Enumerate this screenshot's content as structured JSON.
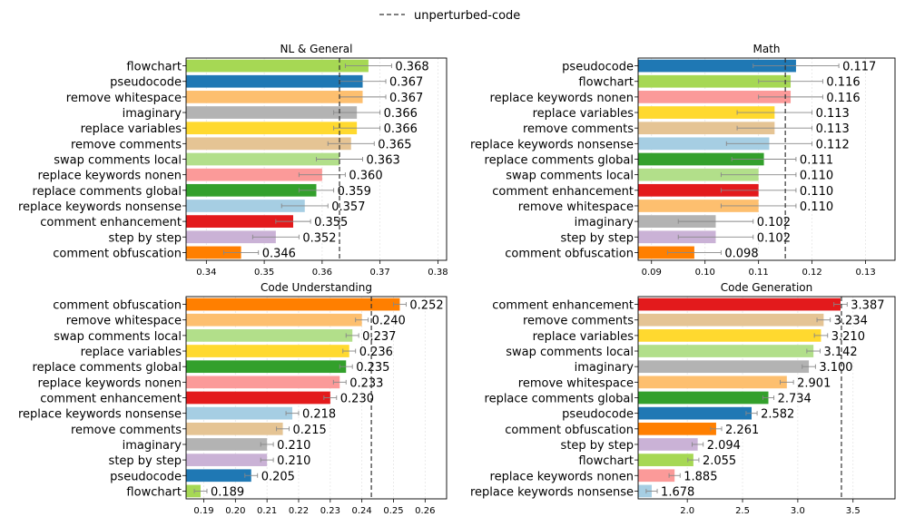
{
  "legend": {
    "label": "unperturbed-code",
    "placement": "top-center"
  },
  "chart_data": [
    {
      "type": "bar",
      "orientation": "horizontal",
      "title": "NL & General",
      "categories": [
        "flowchart",
        "pseudocode",
        "remove whitespace",
        "imaginary",
        "replace variables",
        "remove comments",
        "swap comments local",
        "replace keywords nonen",
        "replace comments global",
        "replace keywords nonsense",
        "comment enhancement",
        "step by step",
        "comment obfuscation"
      ],
      "values": [
        0.368,
        0.367,
        0.367,
        0.366,
        0.366,
        0.365,
        0.363,
        0.36,
        0.359,
        0.357,
        0.355,
        0.352,
        0.346
      ],
      "value_labels": [
        "0.368",
        "0.367",
        "0.367",
        "0.366",
        "0.366",
        "0.365",
        "0.363",
        "0.360",
        "0.359",
        "0.357",
        "0.355",
        "0.352",
        "0.346"
      ],
      "errors": [
        0.004,
        0.004,
        0.004,
        0.004,
        0.004,
        0.004,
        0.004,
        0.004,
        0.003,
        0.004,
        0.003,
        0.004,
        0.003
      ],
      "colors": [
        "#a6d854",
        "#1f78b4",
        "#fdbf6f",
        "#b3b3b3",
        "#ffd92f",
        "#e5c494",
        "#b2df8a",
        "#fb9a99",
        "#33a02c",
        "#a6cee3",
        "#e31a1c",
        "#cab2d6",
        "#ff7f00"
      ],
      "xlim": [
        0.3365,
        0.3815
      ],
      "xticks": [
        0.34,
        0.35,
        0.36,
        0.37,
        0.38
      ],
      "xtick_labels": [
        "0.34",
        "0.35",
        "0.36",
        "0.37",
        "0.38"
      ],
      "reference_line": 0.363,
      "grid": "vertical"
    },
    {
      "type": "bar",
      "orientation": "horizontal",
      "title": "Math",
      "categories": [
        "pseudocode",
        "flowchart",
        "replace keywords nonen",
        "replace variables",
        "remove comments",
        "replace keywords nonsense",
        "replace comments global",
        "swap comments local",
        "comment enhancement",
        "remove whitespace",
        "imaginary",
        "step by step",
        "comment obfuscation"
      ],
      "values": [
        0.117,
        0.116,
        0.116,
        0.113,
        0.113,
        0.112,
        0.111,
        0.11,
        0.11,
        0.11,
        0.102,
        0.102,
        0.098
      ],
      "value_labels": [
        "0.117",
        "0.116",
        "0.116",
        "0.113",
        "0.113",
        "0.112",
        "0.111",
        "0.110",
        "0.110",
        "0.110",
        "0.102",
        "0.102",
        "0.098"
      ],
      "errors": [
        0.008,
        0.006,
        0.006,
        0.007,
        0.007,
        0.008,
        0.006,
        0.007,
        0.007,
        0.007,
        0.007,
        0.007,
        0.005
      ],
      "colors": [
        "#1f78b4",
        "#a6d854",
        "#fb9a99",
        "#ffd92f",
        "#e5c494",
        "#a6cee3",
        "#33a02c",
        "#b2df8a",
        "#e31a1c",
        "#fdbf6f",
        "#b3b3b3",
        "#cab2d6",
        "#ff7f00"
      ],
      "xlim": [
        0.0875,
        0.1355
      ],
      "xticks": [
        0.09,
        0.1,
        0.11,
        0.12,
        0.13
      ],
      "xtick_labels": [
        "0.09",
        "0.10",
        "0.11",
        "0.12",
        "0.13"
      ],
      "reference_line": 0.115,
      "grid": "vertical"
    },
    {
      "type": "bar",
      "orientation": "horizontal",
      "title": "Code Understanding",
      "categories": [
        "comment obfuscation",
        "remove whitespace",
        "swap comments local",
        "replace variables",
        "replace comments global",
        "replace keywords nonen",
        "comment enhancement",
        "replace keywords nonsense",
        "remove comments",
        "imaginary",
        "step by step",
        "pseudocode",
        "flowchart"
      ],
      "values": [
        0.252,
        0.24,
        0.237,
        0.236,
        0.235,
        0.233,
        0.23,
        0.218,
        0.215,
        0.21,
        0.21,
        0.205,
        0.189
      ],
      "value_labels": [
        "0.252",
        "0.240",
        "0.237",
        "0.236",
        "0.235",
        "0.233",
        "0.230",
        "0.218",
        "0.215",
        "0.210",
        "0.210",
        "0.205",
        "0.189"
      ],
      "errors": [
        0.002,
        0.002,
        0.002,
        0.002,
        0.002,
        0.002,
        0.002,
        0.002,
        0.002,
        0.002,
        0.002,
        0.002,
        0.002
      ],
      "colors": [
        "#ff7f00",
        "#fdbf6f",
        "#b2df8a",
        "#ffd92f",
        "#33a02c",
        "#fb9a99",
        "#e31a1c",
        "#a6cee3",
        "#e5c494",
        "#b3b3b3",
        "#cab2d6",
        "#1f78b4",
        "#a6d854"
      ],
      "xlim": [
        0.1844,
        0.2668
      ],
      "xticks": [
        0.19,
        0.2,
        0.21,
        0.22,
        0.23,
        0.24,
        0.25,
        0.26
      ],
      "xtick_labels": [
        "0.19",
        "0.20",
        "0.21",
        "0.22",
        "0.23",
        "0.24",
        "0.25",
        "0.26"
      ],
      "reference_line": 0.243,
      "grid": "vertical"
    },
    {
      "type": "bar",
      "orientation": "horizontal",
      "title": "Code Generation",
      "categories": [
        "comment enhancement",
        "remove comments",
        "replace variables",
        "swap comments local",
        "imaginary",
        "remove whitespace",
        "replace comments global",
        "pseudocode",
        "comment obfuscation",
        "step by step",
        "flowchart",
        "replace keywords nonen",
        "replace keywords nonsense"
      ],
      "values": [
        3.387,
        3.234,
        3.21,
        3.142,
        3.1,
        2.901,
        2.734,
        2.582,
        2.261,
        2.094,
        2.055,
        1.885,
        1.678
      ],
      "value_labels": [
        "3.387",
        "3.234",
        "3.210",
        "3.142",
        "3.100",
        "2.901",
        "2.734",
        "2.582",
        "2.261",
        "2.094",
        "2.055",
        "1.885",
        "1.678"
      ],
      "errors": [
        0.06,
        0.06,
        0.06,
        0.06,
        0.06,
        0.06,
        0.05,
        0.05,
        0.05,
        0.05,
        0.05,
        0.05,
        0.05
      ],
      "colors": [
        "#e31a1c",
        "#e5c494",
        "#ffd92f",
        "#b2df8a",
        "#b3b3b3",
        "#fdbf6f",
        "#33a02c",
        "#1f78b4",
        "#ff7f00",
        "#cab2d6",
        "#a6d854",
        "#fb9a99",
        "#a6cee3"
      ],
      "xlim": [
        1.555,
        3.88
      ],
      "xticks": [
        2.0,
        2.5,
        3.0,
        3.5
      ],
      "xtick_labels": [
        "2.0",
        "2.5",
        "3.0",
        "3.5"
      ],
      "reference_line": 3.395,
      "grid": "vertical"
    }
  ]
}
